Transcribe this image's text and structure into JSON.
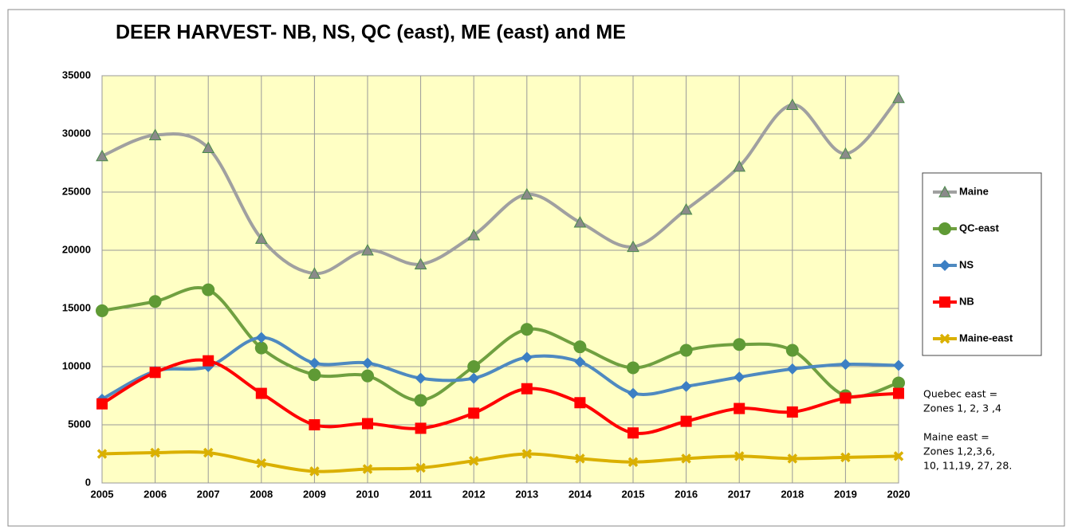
{
  "chart_data": {
    "type": "line",
    "title": "DEER HARVEST- NB, NS, QC (east), ME (east) and ME",
    "x": [
      2005,
      2006,
      2007,
      2008,
      2009,
      2010,
      2011,
      2012,
      2013,
      2014,
      2015,
      2016,
      2017,
      2018,
      2019,
      2020
    ],
    "xlim": [
      2005,
      2020
    ],
    "xticks": [
      2005,
      2006,
      2007,
      2008,
      2009,
      2010,
      2011,
      2012,
      2013,
      2014,
      2015,
      2016,
      2017,
      2018,
      2019,
      2020
    ],
    "ylim": [
      0,
      35000
    ],
    "yticks": [
      0,
      5000,
      10000,
      15000,
      20000,
      25000,
      30000,
      35000
    ],
    "grid": true,
    "smooth": true,
    "series": [
      {
        "name": "Maine",
        "color": "#a0a0a0",
        "marker": "triangle",
        "marker_color": "#8a8a8a",
        "values": [
          28100,
          29900,
          28800,
          21000,
          18000,
          20000,
          18800,
          21300,
          24800,
          22400,
          20300,
          23500,
          27200,
          32500,
          28300,
          33100
        ]
      },
      {
        "name": "QC-east",
        "color": "#70a040",
        "marker": "circle",
        "marker_color": "#5f9a35",
        "values": [
          14800,
          15600,
          16600,
          11600,
          9300,
          9200,
          7100,
          10000,
          13200,
          11700,
          9900,
          11400,
          11900,
          11400,
          7500,
          8600
        ]
      },
      {
        "name": "NS",
        "color": "#4f8ac0",
        "marker": "diamond",
        "marker_color": "#3c7fc4",
        "values": [
          7200,
          9600,
          10000,
          12500,
          10300,
          10300,
          9000,
          9000,
          10800,
          10400,
          7700,
          8300,
          9100,
          9800,
          10200,
          10100
        ]
      },
      {
        "name": "NB",
        "color": "#ff0000",
        "marker": "square",
        "marker_color": "#ff0000",
        "values": [
          6800,
          9500,
          10500,
          7700,
          5000,
          5100,
          4700,
          6000,
          8100,
          6900,
          4300,
          5300,
          6400,
          6100,
          7300,
          7700
        ]
      },
      {
        "name": "Maine-east",
        "color": "#dab000",
        "marker": "x",
        "marker_color": "#dab000",
        "values": [
          2500,
          2600,
          2600,
          1700,
          1000,
          1200,
          1300,
          1900,
          2500,
          2100,
          1800,
          2100,
          2300,
          2100,
          2200,
          2300
        ]
      }
    ],
    "notes": [
      "Quebec east =",
      "Zones 1, 2, 3 ,4",
      "Maine east =",
      "Zones 1,2,3,6,",
      "10, 11,19, 27, 28."
    ]
  }
}
